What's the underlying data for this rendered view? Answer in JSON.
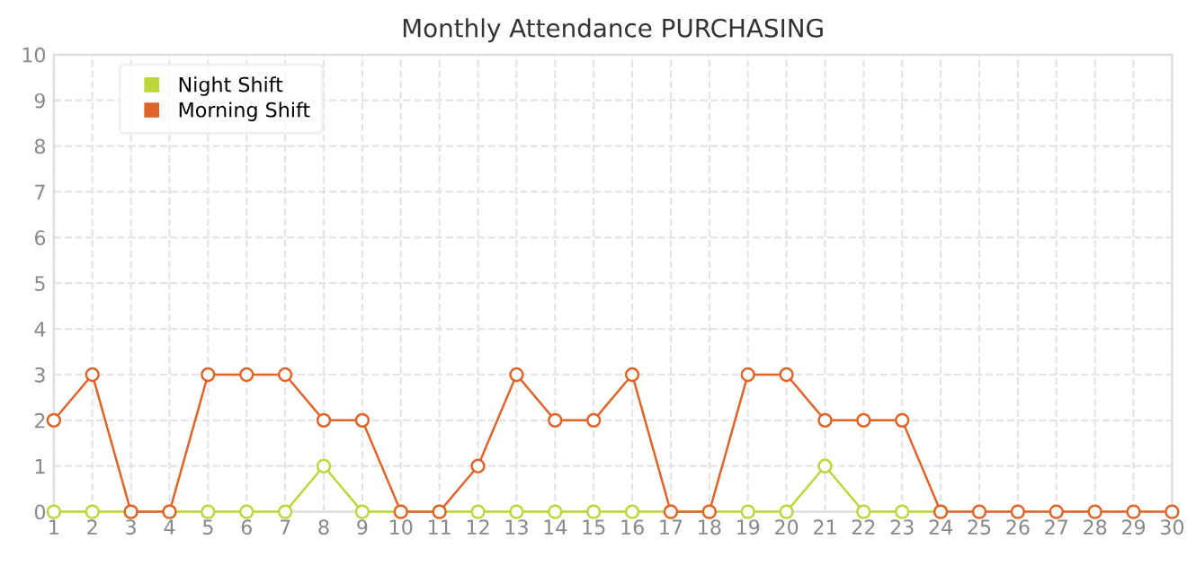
{
  "chart_data": {
    "type": "line",
    "title": "Monthly Attendance PURCHASING",
    "x": [
      1,
      2,
      3,
      4,
      5,
      6,
      7,
      8,
      9,
      10,
      11,
      12,
      13,
      14,
      15,
      16,
      17,
      18,
      19,
      20,
      21,
      22,
      23,
      24,
      25,
      26,
      27,
      28,
      29,
      30
    ],
    "series": [
      {
        "name": "Night Shift",
        "color": "#bcd63c",
        "values": [
          0,
          0,
          0,
          0,
          0,
          0,
          0,
          1,
          0,
          0,
          0,
          0,
          0,
          0,
          0,
          0,
          0,
          0,
          0,
          0,
          1,
          0,
          0,
          0,
          null,
          null,
          null,
          null,
          null,
          null
        ]
      },
      {
        "name": "Morning Shift",
        "color": "#e0642a",
        "values": [
          2,
          3,
          0,
          0,
          3,
          3,
          3,
          2,
          2,
          0,
          0,
          1,
          3,
          2,
          2,
          3,
          0,
          0,
          3,
          3,
          2,
          2,
          2,
          0,
          0,
          0,
          0,
          0,
          0,
          0
        ]
      }
    ],
    "xlim": [
      1,
      30
    ],
    "xticks": [
      1,
      2,
      3,
      4,
      5,
      6,
      7,
      8,
      9,
      10,
      11,
      12,
      13,
      14,
      15,
      16,
      17,
      18,
      19,
      20,
      21,
      22,
      23,
      24,
      25,
      26,
      27,
      28,
      29,
      30
    ],
    "ylim": [
      0,
      10
    ],
    "yticks": [
      0,
      1,
      2,
      3,
      4,
      5,
      6,
      7,
      8,
      9,
      10
    ],
    "grid": true,
    "legend": "top left",
    "marker": "circle",
    "line_style": "solid"
  }
}
